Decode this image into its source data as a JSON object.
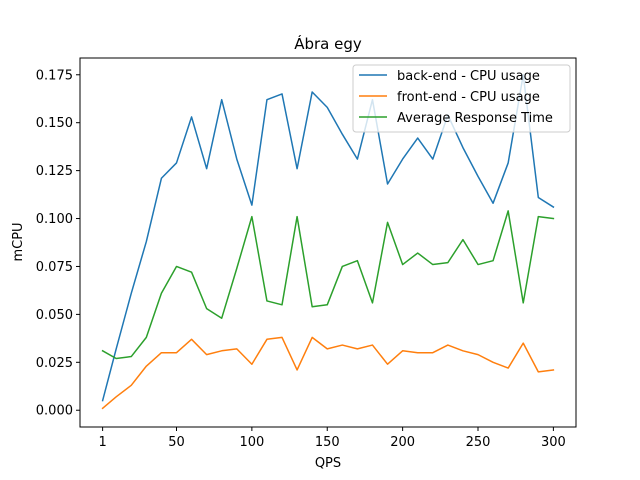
{
  "chart_data": {
    "type": "line",
    "title": "Ábra egy",
    "xlabel": "QPS",
    "ylabel": "mCPU",
    "xlim": [
      -14,
      315
    ],
    "ylim": [
      -0.00875,
      0.18375
    ],
    "xticks": [
      1,
      50,
      100,
      150,
      200,
      250,
      300
    ],
    "xtick_labels": [
      "1",
      "50",
      "100",
      "150",
      "200",
      "250",
      "300"
    ],
    "yticks": [
      0,
      0.025,
      0.05,
      0.075,
      0.1,
      0.125,
      0.15,
      0.175
    ],
    "ytick_labels": [
      "0.000",
      "0.025",
      "0.050",
      "0.075",
      "0.100",
      "0.125",
      "0.150",
      "0.175"
    ],
    "legend_position": "top-right",
    "x": [
      1,
      10,
      20,
      30,
      40,
      50,
      60,
      70,
      80,
      90,
      100,
      110,
      120,
      130,
      140,
      150,
      160,
      170,
      180,
      190,
      200,
      210,
      220,
      230,
      240,
      250,
      260,
      270,
      280,
      290,
      300
    ],
    "series": [
      {
        "name": "back-end - CPU usage",
        "color": "#1f77b4",
        "values": [
          0.005,
          0.032,
          0.061,
          0.088,
          0.121,
          0.129,
          0.153,
          0.126,
          0.162,
          0.131,
          0.107,
          0.162,
          0.165,
          0.126,
          0.166,
          0.158,
          0.144,
          0.131,
          0.162,
          0.118,
          0.131,
          0.142,
          0.131,
          0.154,
          0.137,
          0.122,
          0.108,
          0.129,
          0.175,
          0.111,
          0.106
        ]
      },
      {
        "name": "front-end - CPU usage",
        "color": "#ff7f0e",
        "values": [
          0.001,
          0.007,
          0.013,
          0.023,
          0.03,
          0.03,
          0.037,
          0.029,
          0.031,
          0.032,
          0.024,
          0.037,
          0.038,
          0.021,
          0.038,
          0.032,
          0.034,
          0.032,
          0.034,
          0.024,
          0.031,
          0.03,
          0.03,
          0.034,
          0.031,
          0.029,
          0.025,
          0.022,
          0.035,
          0.02,
          0.021
        ]
      },
      {
        "name": "Average Response Time",
        "color": "#2ca02c",
        "values": [
          0.031,
          0.027,
          0.028,
          0.038,
          0.061,
          0.075,
          0.072,
          0.053,
          0.048,
          0.074,
          0.101,
          0.057,
          0.055,
          0.101,
          0.054,
          0.055,
          0.075,
          0.078,
          0.056,
          0.098,
          0.076,
          0.082,
          0.076,
          0.077,
          0.089,
          0.076,
          0.078,
          0.104,
          0.056,
          0.101,
          0.1
        ]
      }
    ]
  }
}
